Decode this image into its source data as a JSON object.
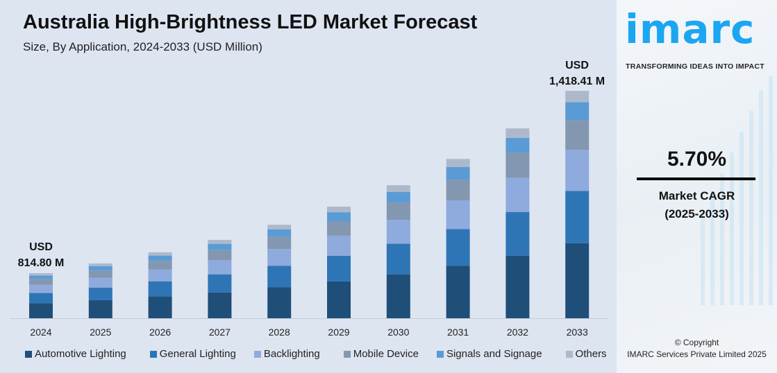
{
  "header": {
    "title": "Australia High-Brightness LED Market Forecast",
    "subtitle": "Size, By Application, 2024-2033 (USD Million)"
  },
  "annotations": {
    "start": {
      "line1": "USD",
      "line2": "814.80 M"
    },
    "end": {
      "line1": "USD",
      "line2": "1,418.41 M"
    }
  },
  "sidebar": {
    "logo_text": "imarc",
    "tagline": "TRANSFORMING IDEAS INTO IMPACT",
    "cagr_value": "5.70%",
    "cagr_label": "Market CAGR",
    "cagr_period": "(2025-2033)",
    "copyright": "© Copyright",
    "company": "IMARC Services Private Limited 2025",
    "brand_color": "#1ba6f2"
  },
  "chart_data": {
    "type": "bar",
    "stacked": true,
    "title": "Australia High-Brightness LED Market Forecast",
    "subtitle": "Size, By Application, 2024-2033 (USD Million)",
    "categories": [
      "2024",
      "2025",
      "2026",
      "2027",
      "2028",
      "2029",
      "2030",
      "2031",
      "2032",
      "2033"
    ],
    "totals": [
      814.8,
      847,
      884,
      925,
      975,
      1035,
      1106,
      1193,
      1294,
      1418.41
    ],
    "series": [
      {
        "name": "Automotive Lighting",
        "color": "#1f4e79",
        "share": 0.33
      },
      {
        "name": "General Lighting",
        "color": "#2e75b6",
        "share": 0.23
      },
      {
        "name": "Backlighting",
        "color": "#8faadc",
        "share": 0.18
      },
      {
        "name": "Mobile Device",
        "color": "#8497b0",
        "share": 0.13
      },
      {
        "name": "Signals and Signage",
        "color": "#5b9bd5",
        "share": 0.08
      },
      {
        "name": "Others",
        "color": "#adb9ca",
        "share": 0.05
      }
    ],
    "grid": false,
    "legend_position": "bottom"
  }
}
